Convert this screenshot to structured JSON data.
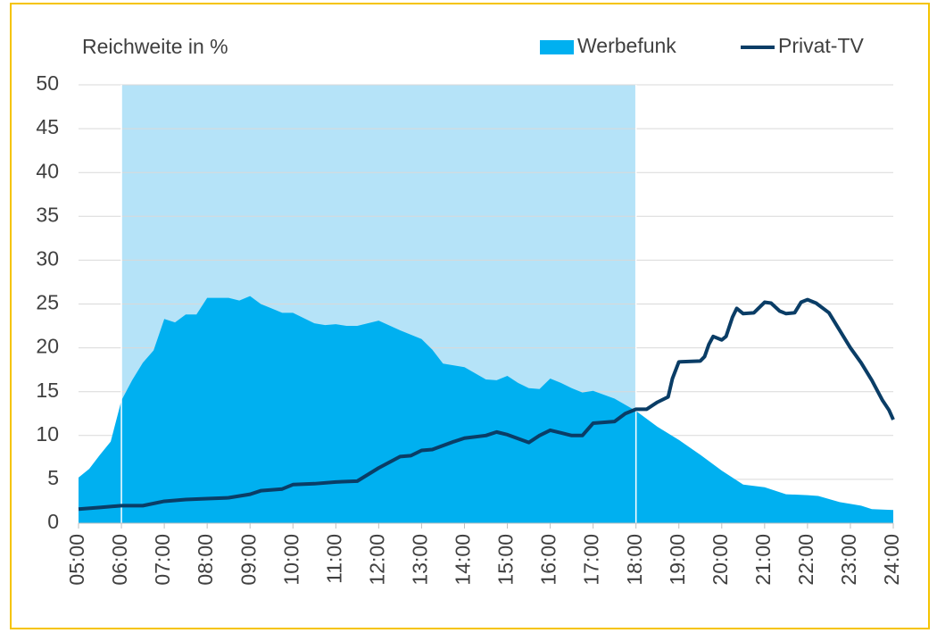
{
  "chart_data": {
    "type": "area_line",
    "ylabel": "Reichweite in %",
    "highlight_range": [
      6,
      18
    ],
    "highlight_color": "#b5e3f8",
    "grid": true,
    "legend": "top-right",
    "xlim": [
      5,
      24
    ],
    "xticks": [
      {
        "value": 5,
        "label": "05:00"
      },
      {
        "value": 6,
        "label": "06:00"
      },
      {
        "value": 7,
        "label": "07:00"
      },
      {
        "value": 8,
        "label": "08:00"
      },
      {
        "value": 9,
        "label": "09:00"
      },
      {
        "value": 10,
        "label": "10:00"
      },
      {
        "value": 11,
        "label": "11:00"
      },
      {
        "value": 12,
        "label": "12:00"
      },
      {
        "value": 13,
        "label": "13:00"
      },
      {
        "value": 14,
        "label": "14:00"
      },
      {
        "value": 15,
        "label": "15:00"
      },
      {
        "value": 16,
        "label": "16:00"
      },
      {
        "value": 17,
        "label": "17:00"
      },
      {
        "value": 18,
        "label": "18:00"
      },
      {
        "value": 19,
        "label": "19:00"
      },
      {
        "value": 20,
        "label": "20:00"
      },
      {
        "value": 21,
        "label": "21:00"
      },
      {
        "value": 22,
        "label": "22:00"
      },
      {
        "value": 23,
        "label": "23:00"
      },
      {
        "value": 24,
        "label": "24:00"
      }
    ],
    "ylim": [
      0,
      50
    ],
    "yticks": [
      0,
      5,
      10,
      15,
      20,
      25,
      30,
      35,
      40,
      45,
      50
    ],
    "series": [
      {
        "name": "Werbefunk",
        "kind": "area",
        "color": "#00b0f0",
        "x": [
          5,
          5.25,
          5.5,
          5.75,
          6,
          6.25,
          6.5,
          6.75,
          7,
          7.25,
          7.5,
          7.75,
          8,
          8.25,
          8.5,
          8.75,
          9,
          9.25,
          9.5,
          9.75,
          10,
          10.25,
          10.5,
          10.75,
          11,
          11.25,
          11.5,
          12,
          12.5,
          13,
          13.25,
          13.5,
          13.75,
          14,
          14.5,
          14.75,
          15,
          15.25,
          15.5,
          15.75,
          16,
          16.25,
          16.5,
          16.75,
          17,
          17.5,
          18,
          18.5,
          19,
          19.5,
          20,
          20.5,
          21,
          21.5,
          22,
          22.25,
          22.75,
          23.25,
          23.5,
          24
        ],
        "values": [
          5.2,
          6.2,
          7.8,
          9.3,
          14,
          16.3,
          18.3,
          19.7,
          23.3,
          22.9,
          23.8,
          23.8,
          25.7,
          25.7,
          25.7,
          25.4,
          25.9,
          25,
          24.5,
          24,
          24,
          23.4,
          22.8,
          22.6,
          22.7,
          22.5,
          22.5,
          23.1,
          22,
          21,
          19.8,
          18.2,
          18,
          17.8,
          16.4,
          16.3,
          16.8,
          16,
          15.4,
          15.3,
          16.5,
          16,
          15.4,
          14.9,
          15.1,
          14.2,
          12.8,
          11,
          9.5,
          7.8,
          6,
          4.4,
          4.1,
          3.3,
          3.2,
          3.1,
          2.4,
          2,
          1.6,
          1.5
        ]
      },
      {
        "name": "Privat-TV",
        "kind": "line",
        "color": "#0a3d66",
        "x": [
          5,
          5.5,
          6,
          6.5,
          7,
          7.5,
          8,
          8.5,
          9,
          9.25,
          9.75,
          10,
          10.5,
          11,
          11.5,
          12,
          12.5,
          12.75,
          13,
          13.25,
          13.75,
          14,
          14.5,
          14.75,
          15,
          15.5,
          15.75,
          16,
          16.25,
          16.5,
          16.75,
          17,
          17.5,
          17.75,
          18,
          18.25,
          18.5,
          18.75,
          18.85,
          19,
          19.5,
          19.6,
          19.7,
          19.8,
          20,
          20.1,
          20.25,
          20.35,
          20.5,
          20.75,
          21,
          21.15,
          21.35,
          21.5,
          21.7,
          21.85,
          22,
          22.2,
          22.5,
          22.75,
          23,
          23.25,
          23.5,
          23.75,
          23.9,
          24
        ],
        "values": [
          1.6,
          1.8,
          2,
          2,
          2.5,
          2.7,
          2.8,
          2.9,
          3.3,
          3.7,
          3.9,
          4.4,
          4.5,
          4.7,
          4.8,
          6.3,
          7.6,
          7.7,
          8.3,
          8.4,
          9.3,
          9.7,
          10,
          10.4,
          10.1,
          9.2,
          10,
          10.6,
          10.3,
          10,
          10,
          11.4,
          11.6,
          12.5,
          13,
          13,
          13.8,
          14.4,
          16.5,
          18.4,
          18.5,
          19,
          20.4,
          21.3,
          20.9,
          21.3,
          23.5,
          24.5,
          23.9,
          24,
          25.2,
          25.1,
          24.2,
          23.9,
          24,
          25.2,
          25.5,
          25.1,
          24,
          22,
          20,
          18.3,
          16.3,
          14,
          12.9,
          11.8
        ]
      }
    ]
  }
}
